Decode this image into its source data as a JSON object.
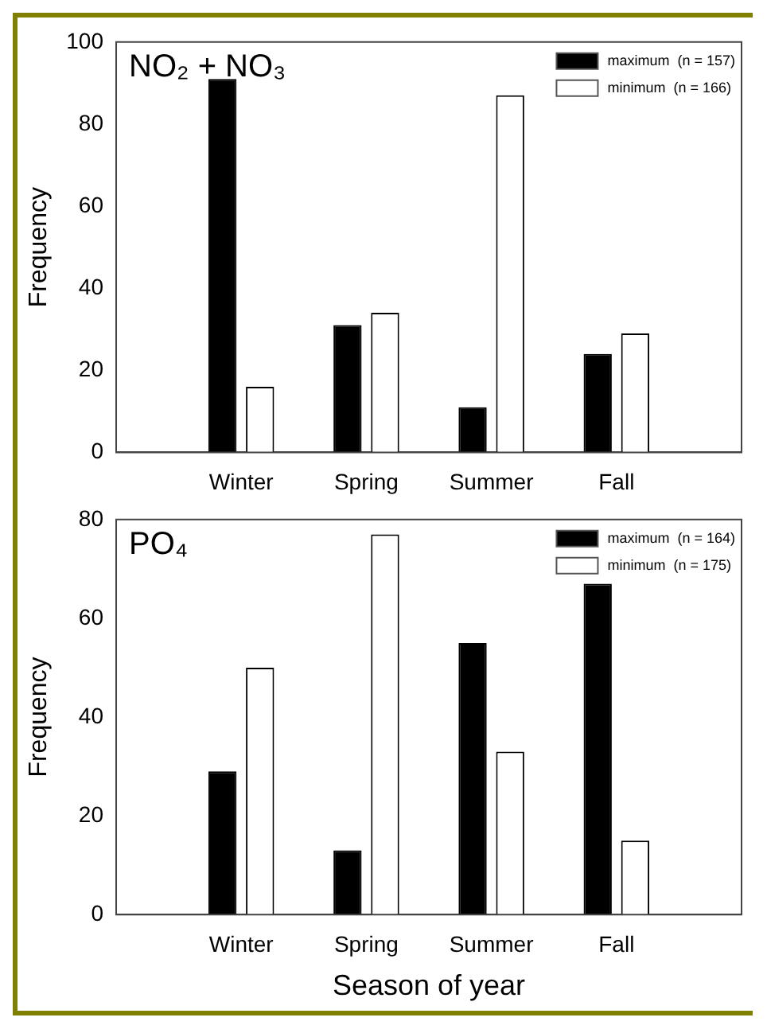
{
  "chart_data": [
    {
      "type": "bar",
      "annotations": [
        "NO₂ + NO₃"
      ],
      "ylabel": "Frequency",
      "categories": [
        null,
        "Winter",
        "Spring",
        "Summer",
        "Fall",
        null
      ],
      "series": [
        {
          "name": "maximum  (n = 157)",
          "color": "#000000",
          "values": [
            null,
            91,
            31,
            11,
            24,
            null
          ]
        },
        {
          "name": "minimum  (n = 166)",
          "color": "#ffffff",
          "values": [
            null,
            16,
            34,
            87,
            29,
            null
          ]
        }
      ],
      "ylim": [
        0,
        100
      ],
      "yticks": [
        0,
        20,
        40,
        60,
        80,
        100
      ],
      "legend": "top right"
    },
    {
      "type": "bar",
      "annotations": [
        "PO₄"
      ],
      "ylabel": "Frequency",
      "xlabel": "Season of year",
      "categories": [
        null,
        "Winter",
        "Spring",
        "Summer",
        "Fall",
        null
      ],
      "series": [
        {
          "name": "maximum  (n = 164)",
          "color": "#000000",
          "values": [
            null,
            29,
            13,
            55,
            67,
            null
          ]
        },
        {
          "name": "minimum  (n = 175)",
          "color": "#ffffff",
          "values": [
            null,
            50,
            77,
            33,
            15,
            null
          ]
        }
      ],
      "ylim": [
        0,
        80
      ],
      "yticks": [
        0,
        20,
        40,
        60,
        80
      ],
      "legend": "top right"
    }
  ]
}
